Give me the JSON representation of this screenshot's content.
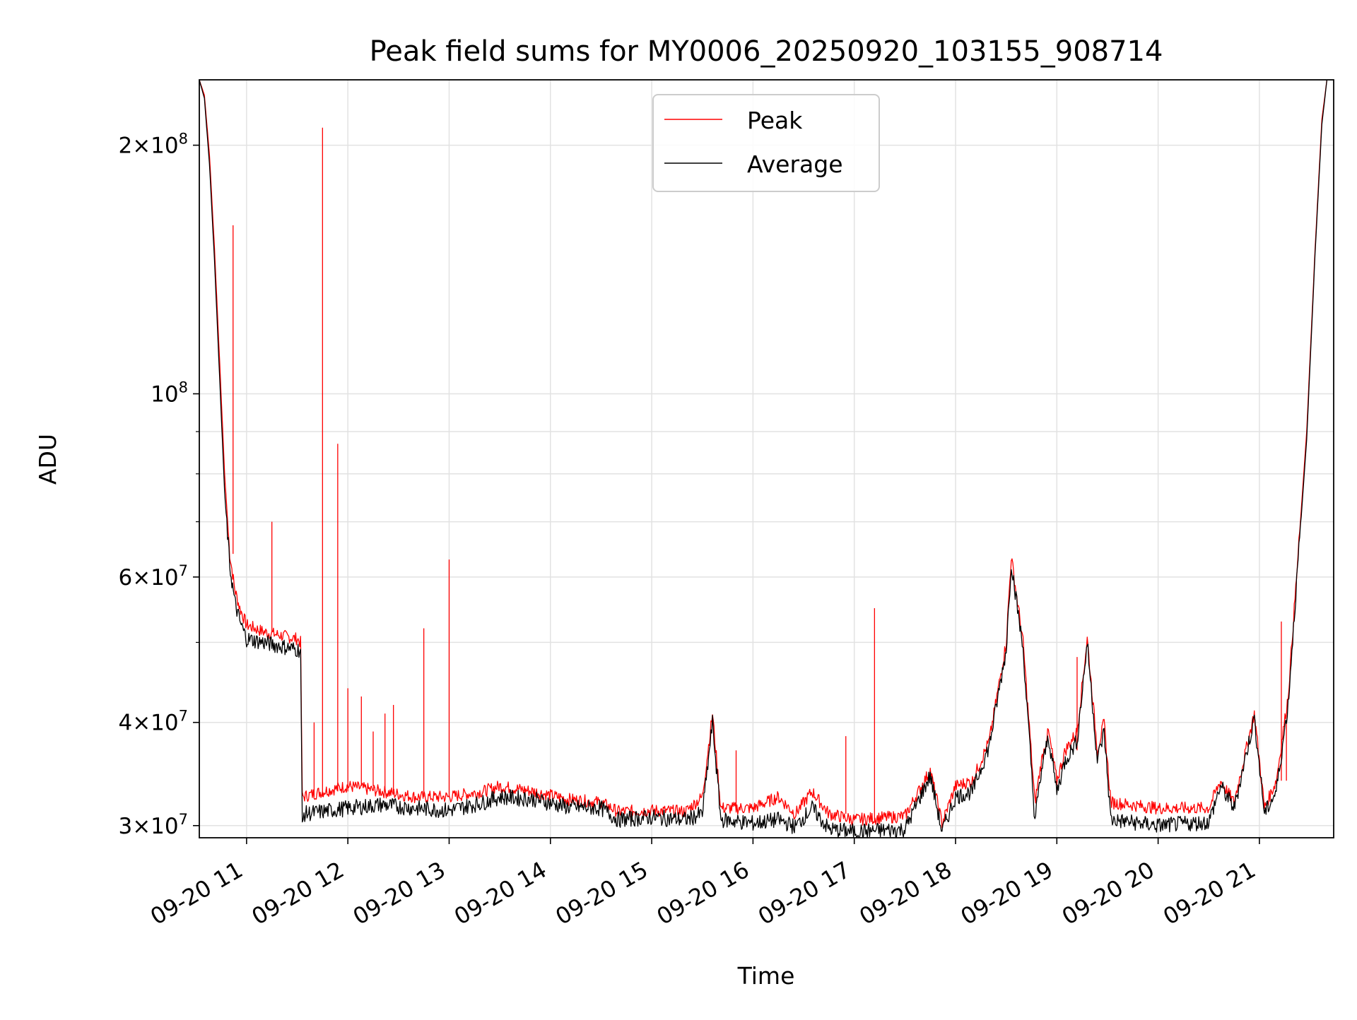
{
  "chart_data": {
    "type": "line",
    "title": "Peak field sums for MY0006_20250920_103155_908714",
    "xlabel": "Time",
    "ylabel": "ADU",
    "y_scale": "log",
    "ylim": [
      29000000,
      240000000
    ],
    "xlim": [
      "2025-09-20 10:32",
      "2025-09-20 21:44"
    ],
    "grid": true,
    "legend_position": "top-center",
    "x_ticks": [
      {
        "t": "2025-09-20 11:00",
        "label": "09-20 11"
      },
      {
        "t": "2025-09-20 12:00",
        "label": "09-20 12"
      },
      {
        "t": "2025-09-20 13:00",
        "label": "09-20 13"
      },
      {
        "t": "2025-09-20 14:00",
        "label": "09-20 14"
      },
      {
        "t": "2025-09-20 15:00",
        "label": "09-20 15"
      },
      {
        "t": "2025-09-20 16:00",
        "label": "09-20 16"
      },
      {
        "t": "2025-09-20 17:00",
        "label": "09-20 17"
      },
      {
        "t": "2025-09-20 18:00",
        "label": "09-20 18"
      },
      {
        "t": "2025-09-20 19:00",
        "label": "09-20 19"
      },
      {
        "t": "2025-09-20 20:00",
        "label": "09-20 20"
      },
      {
        "t": "2025-09-20 21:00",
        "label": "09-20 21"
      }
    ],
    "y_major_ticks": [
      {
        "v": 30000000,
        "mant": "3",
        "exp": "7"
      },
      {
        "v": 40000000,
        "mant": "4",
        "exp": "7"
      },
      {
        "v": 60000000,
        "mant": "6",
        "exp": "7"
      },
      {
        "v": 100000000,
        "mant": "",
        "exp": "8"
      },
      {
        "v": 200000000,
        "mant": "2",
        "exp": "8"
      }
    ],
    "y_minor_ticks": [
      50000000,
      70000000,
      80000000,
      90000000
    ],
    "series": [
      {
        "name": "Peak",
        "color": "#ff0000",
        "points": [
          [
            "2025-09-20 10:32",
            240000000
          ],
          [
            "2025-09-20 10:35",
            230000000
          ],
          [
            "2025-09-20 10:38",
            195000000
          ],
          [
            "2025-09-20 10:41",
            150000000
          ],
          [
            "2025-09-20 10:44",
            110000000
          ],
          [
            "2025-09-20 10:47",
            80000000
          ],
          [
            "2025-09-20 10:50",
            64000000
          ],
          [
            "2025-09-20 10:53",
            58000000
          ],
          [
            "2025-09-20 10:56",
            55000000
          ],
          [
            "2025-09-20 11:00",
            52500000
          ],
          [
            "2025-09-20 11:10",
            51500000
          ],
          [
            "2025-09-20 11:20",
            51000000
          ],
          [
            "2025-09-20 11:30",
            50500000
          ],
          [
            "2025-09-20 11:32",
            50000000
          ],
          [
            "2025-09-20 11:33",
            32500000
          ],
          [
            "2025-09-20 11:45",
            33000000
          ],
          [
            "2025-09-20 12:00",
            33500000
          ],
          [
            "2025-09-20 12:20",
            33000000
          ],
          [
            "2025-09-20 12:40",
            32500000
          ],
          [
            "2025-09-20 13:00",
            32500000
          ],
          [
            "2025-09-20 13:20",
            33000000
          ],
          [
            "2025-09-20 13:30",
            33500000
          ],
          [
            "2025-09-20 13:50",
            33000000
          ],
          [
            "2025-09-20 14:10",
            32300000
          ],
          [
            "2025-09-20 14:30",
            32000000
          ],
          [
            "2025-09-20 14:40",
            31200000
          ],
          [
            "2025-09-20 15:00",
            31300000
          ],
          [
            "2025-09-20 15:20",
            31200000
          ],
          [
            "2025-09-20 15:30",
            32500000
          ],
          [
            "2025-09-20 15:36",
            41000000
          ],
          [
            "2025-09-20 15:41",
            31500000
          ],
          [
            "2025-09-20 16:00",
            31500000
          ],
          [
            "2025-09-20 16:15",
            32500000
          ],
          [
            "2025-09-20 16:25",
            31000000
          ],
          [
            "2025-09-20 16:35",
            33000000
          ],
          [
            "2025-09-20 16:45",
            31000000
          ],
          [
            "2025-09-20 17:00",
            30500000
          ],
          [
            "2025-09-20 17:30",
            30800000
          ],
          [
            "2025-09-20 17:45",
            35000000
          ],
          [
            "2025-09-20 17:52",
            30200000
          ],
          [
            "2025-09-20 18:00",
            33500000
          ],
          [
            "2025-09-20 18:10",
            34000000
          ],
          [
            "2025-09-20 18:20",
            38000000
          ],
          [
            "2025-09-20 18:30",
            50000000
          ],
          [
            "2025-09-20 18:33",
            63500000
          ],
          [
            "2025-09-20 18:40",
            50000000
          ],
          [
            "2025-09-20 18:47",
            32000000
          ],
          [
            "2025-09-20 18:51",
            36000000
          ],
          [
            "2025-09-20 18:55",
            39000000
          ],
          [
            "2025-09-20 19:00",
            34000000
          ],
          [
            "2025-09-20 19:05",
            37000000
          ],
          [
            "2025-09-20 19:12",
            39000000
          ],
          [
            "2025-09-20 19:18",
            50500000
          ],
          [
            "2025-09-20 19:24",
            37000000
          ],
          [
            "2025-09-20 19:28",
            40000000
          ],
          [
            "2025-09-20 19:32",
            32000000
          ],
          [
            "2025-09-20 20:00",
            31500000
          ],
          [
            "2025-09-20 20:30",
            31500000
          ],
          [
            "2025-09-20 20:37",
            34000000
          ],
          [
            "2025-09-20 20:45",
            32000000
          ],
          [
            "2025-09-20 20:57",
            41000000
          ],
          [
            "2025-09-20 21:03",
            31500000
          ],
          [
            "2025-09-20 21:10",
            34000000
          ],
          [
            "2025-09-20 21:17",
            43000000
          ],
          [
            "2025-09-20 21:22",
            60000000
          ],
          [
            "2025-09-20 21:28",
            90000000
          ],
          [
            "2025-09-20 21:33",
            150000000
          ],
          [
            "2025-09-20 21:37",
            215000000
          ],
          [
            "2025-09-20 21:40",
            240000000
          ]
        ],
        "spikes": [
          [
            "2025-09-20 10:52",
            160000000
          ],
          [
            "2025-09-20 11:15",
            70000000
          ],
          [
            "2025-09-20 11:40",
            40000000
          ],
          [
            "2025-09-20 11:45",
            210000000
          ],
          [
            "2025-09-20 11:54",
            87000000
          ],
          [
            "2025-09-20 12:00",
            44000000
          ],
          [
            "2025-09-20 12:08",
            43000000
          ],
          [
            "2025-09-20 12:15",
            39000000
          ],
          [
            "2025-09-20 12:22",
            41000000
          ],
          [
            "2025-09-20 12:27",
            42000000
          ],
          [
            "2025-09-20 12:45",
            52000000
          ],
          [
            "2025-09-20 13:00",
            63000000
          ],
          [
            "2025-09-20 15:50",
            37000000
          ],
          [
            "2025-09-20 16:55",
            38500000
          ],
          [
            "2025-09-20 17:12",
            55000000
          ],
          [
            "2025-09-20 19:12",
            48000000
          ],
          [
            "2025-09-20 21:13",
            53000000
          ],
          [
            "2025-09-20 21:16",
            40000000
          ]
        ]
      },
      {
        "name": "Average",
        "color": "#000000",
        "points": [
          [
            "2025-09-20 10:32",
            240000000
          ],
          [
            "2025-09-20 10:35",
            228000000
          ],
          [
            "2025-09-20 10:38",
            190000000
          ],
          [
            "2025-09-20 10:41",
            145000000
          ],
          [
            "2025-09-20 10:44",
            105000000
          ],
          [
            "2025-09-20 10:47",
            76000000
          ],
          [
            "2025-09-20 10:50",
            62000000
          ],
          [
            "2025-09-20 10:53",
            56000000
          ],
          [
            "2025-09-20 10:56",
            53000000
          ],
          [
            "2025-09-20 11:00",
            50500000
          ],
          [
            "2025-09-20 11:10",
            50000000
          ],
          [
            "2025-09-20 11:20",
            49500000
          ],
          [
            "2025-09-20 11:30",
            49000000
          ],
          [
            "2025-09-20 11:32",
            49000000
          ],
          [
            "2025-09-20 11:33",
            29800000
          ],
          [
            "2025-09-20 11:34",
            31000000
          ],
          [
            "2025-09-20 11:45",
            31200000
          ],
          [
            "2025-09-20 12:00",
            31500000
          ],
          [
            "2025-09-20 12:20",
            31800000
          ],
          [
            "2025-09-20 12:40",
            31500000
          ],
          [
            "2025-09-20 13:00",
            31300000
          ],
          [
            "2025-09-20 13:20",
            32000000
          ],
          [
            "2025-09-20 13:30",
            32500000
          ],
          [
            "2025-09-20 13:50",
            32300000
          ],
          [
            "2025-09-20 14:10",
            31600000
          ],
          [
            "2025-09-20 14:30",
            31500000
          ],
          [
            "2025-09-20 14:40",
            30500000
          ],
          [
            "2025-09-20 15:00",
            30700000
          ],
          [
            "2025-09-20 15:20",
            30500000
          ],
          [
            "2025-09-20 15:30",
            31000000
          ],
          [
            "2025-09-20 15:36",
            40000000
          ],
          [
            "2025-09-20 15:41",
            30500000
          ],
          [
            "2025-09-20 16:00",
            30200000
          ],
          [
            "2025-09-20 16:15",
            30500000
          ],
          [
            "2025-09-20 16:25",
            29900000
          ],
          [
            "2025-09-20 16:35",
            31500000
          ],
          [
            "2025-09-20 16:45",
            29700000
          ],
          [
            "2025-09-20 17:00",
            29500000
          ],
          [
            "2025-09-20 17:30",
            29700000
          ],
          [
            "2025-09-20 17:45",
            34500000
          ],
          [
            "2025-09-20 17:52",
            29500000
          ],
          [
            "2025-09-20 18:00",
            32500000
          ],
          [
            "2025-09-20 18:10",
            33000000
          ],
          [
            "2025-09-20 18:20",
            37500000
          ],
          [
            "2025-09-20 18:30",
            49000000
          ],
          [
            "2025-09-20 18:33",
            62500000
          ],
          [
            "2025-09-20 18:40",
            49000000
          ],
          [
            "2025-09-20 18:47",
            30500000
          ],
          [
            "2025-09-20 18:51",
            35000000
          ],
          [
            "2025-09-20 18:55",
            38500000
          ],
          [
            "2025-09-20 19:00",
            33000000
          ],
          [
            "2025-09-20 19:05",
            36000000
          ],
          [
            "2025-09-20 19:12",
            38000000
          ],
          [
            "2025-09-20 19:18",
            50000000
          ],
          [
            "2025-09-20 19:24",
            36000000
          ],
          [
            "2025-09-20 19:28",
            39000000
          ],
          [
            "2025-09-20 19:32",
            30500000
          ],
          [
            "2025-09-20 20:00",
            30000000
          ],
          [
            "2025-09-20 20:30",
            30300000
          ],
          [
            "2025-09-20 20:37",
            33500000
          ],
          [
            "2025-09-20 20:45",
            31500000
          ],
          [
            "2025-09-20 20:57",
            40500000
          ],
          [
            "2025-09-20 21:03",
            31000000
          ],
          [
            "2025-09-20 21:10",
            33000000
          ],
          [
            "2025-09-20 21:17",
            42000000
          ],
          [
            "2025-09-20 21:22",
            59000000
          ],
          [
            "2025-09-20 21:28",
            88000000
          ],
          [
            "2025-09-20 21:33",
            148000000
          ],
          [
            "2025-09-20 21:37",
            212000000
          ],
          [
            "2025-09-20 21:40",
            240000000
          ]
        ]
      }
    ]
  }
}
